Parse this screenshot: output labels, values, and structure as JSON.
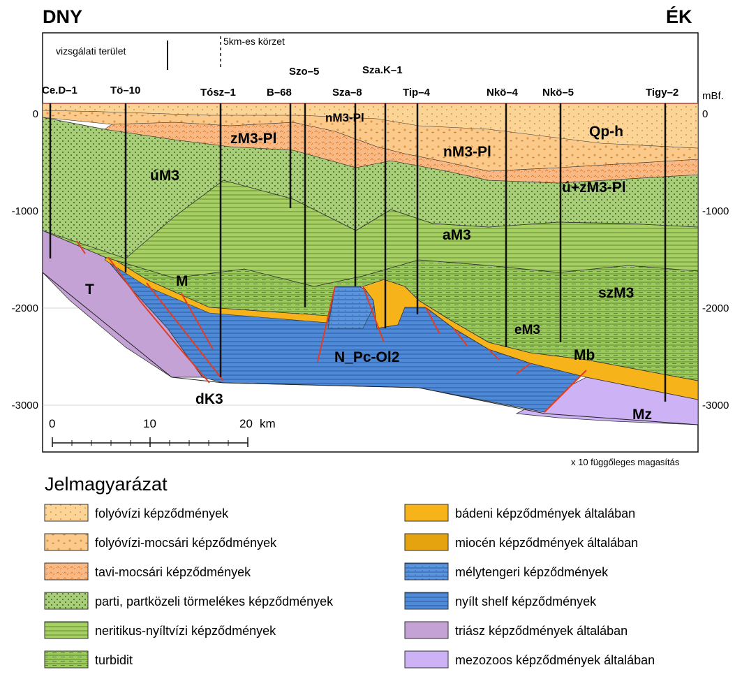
{
  "orientation": {
    "left": "DNY",
    "right": "ÉK"
  },
  "top_legend": {
    "study_area": "vizsgálati terület",
    "zone_5km": "5km-es körzet"
  },
  "wells": [
    "Ce.D–1",
    "Tö–10",
    "Tósz–1",
    "B–68",
    "Szo–5",
    "Sza–8",
    "Sza.K–1",
    "Tip–4",
    "Nkö–4",
    "Nkö–5",
    "Tigy–2"
  ],
  "depth_axis": {
    "unit": "mBf.",
    "left_ticks": [
      "0",
      "-1000",
      "-2000",
      "-3000"
    ],
    "right_ticks": [
      "0",
      "-1000",
      "-2000",
      "-3000"
    ]
  },
  "scale_bar": {
    "ticks": [
      "0",
      "10",
      "20"
    ],
    "unit": "km"
  },
  "vertical_exaggeration": "x 10 függőleges magasítás",
  "units": {
    "Qp_h": "Qp-h",
    "nM3_Pl_top": "nM3-Pl",
    "zM3_Pl": "zM3-Pl",
    "nM3_Pl": "nM3-Pl",
    "uM3": "úM3",
    "u_zM3_Pl": "ú+zM3-Pl",
    "aM3": "aM3",
    "szM3": "szM3",
    "eM3": "eM3",
    "M": "M",
    "T": "T",
    "dK3": "dK3",
    "N_Pc_Ol2": "N_Pc-Ol2",
    "Mb": "Mb",
    "Mz": "Mz"
  },
  "legend": {
    "title": "Jelmagyarázat",
    "left": [
      {
        "label": "folyóvízi képződmények",
        "color": "#fcd496"
      },
      {
        "label": "folyóvízi-mocsári képződmények",
        "color": "#fbc98a"
      },
      {
        "label": "tavi-mocsári képződmények",
        "color": "#f8b984"
      },
      {
        "label": "parti, partközeli törmelékes képződmények",
        "color": "#a8cf78"
      },
      {
        "label": "neritikus-nyíltvízi képződmények",
        "color": "#a6cf64"
      },
      {
        "label": "turbidit",
        "color": "#9ccb5c"
      }
    ],
    "right": [
      {
        "label": "bádeni képződmények általában",
        "color": "#f7b31a"
      },
      {
        "label": "miocén képződmények általában",
        "color": "#e5a30f"
      },
      {
        "label": "mélytengeri képződmények",
        "color": "#5b95de"
      },
      {
        "label": "nyílt shelf képződmények",
        "color": "#4f8ad8"
      },
      {
        "label": "triász képződmények általában",
        "color": "#c4a2d6"
      },
      {
        "label": "mezozoos képződmények általában",
        "color": "#cdb2f6"
      }
    ]
  }
}
